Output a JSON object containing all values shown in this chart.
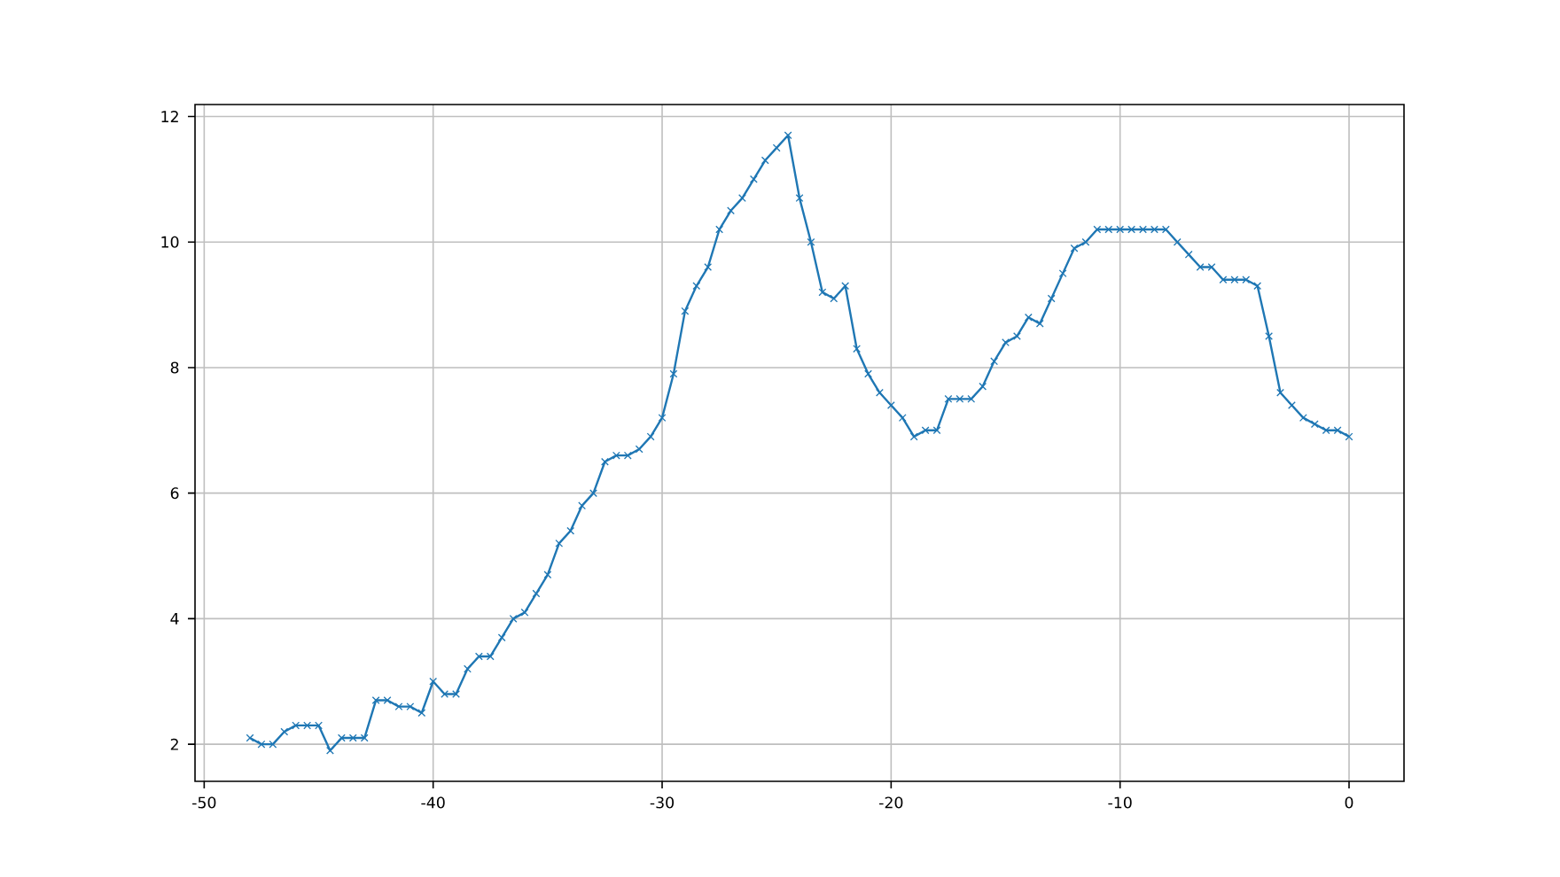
{
  "chart_data": {
    "type": "line",
    "marker": "cross",
    "grid": true,
    "xlim": [
      -50.4,
      2.4
    ],
    "ylim": [
      1.41,
      12.19
    ],
    "xticks": [
      -50,
      -40,
      -30,
      -20,
      -10,
      0
    ],
    "yticks": [
      2,
      4,
      6,
      8,
      10,
      12
    ],
    "x": [
      -48,
      -47.5,
      -47,
      -46.5,
      -46,
      -45.5,
      -45,
      -44.5,
      -44,
      -43.5,
      -43,
      -42.5,
      -42,
      -41.5,
      -41,
      -40.5,
      -40,
      -39.5,
      -39,
      -38.5,
      -38,
      -37.5,
      -37,
      -36.5,
      -36,
      -35.5,
      -35,
      -34.5,
      -34,
      -33.5,
      -33,
      -32.5,
      -32,
      -31.5,
      -31,
      -30.5,
      -30,
      -29.5,
      -29,
      -28.5,
      -28,
      -27.5,
      -27,
      -26.5,
      -26,
      -25.5,
      -25,
      -24.5,
      -24,
      -23.5,
      -23,
      -22.5,
      -22,
      -21.5,
      -21,
      -20.5,
      -20,
      -19.5,
      -19,
      -18.5,
      -18,
      -17.5,
      -17,
      -16.5,
      -16,
      -15.5,
      -15,
      -14.5,
      -14,
      -13.5,
      -13,
      -12.5,
      -12,
      -11.5,
      -11,
      -10.5,
      -10,
      -9.5,
      -9,
      -8.5,
      -8,
      -7.5,
      -7,
      -6.5,
      -6,
      -5.5,
      -5,
      -4.5,
      -4,
      -3.5,
      -3,
      -2.5,
      -2,
      -1.5,
      -1,
      -0.5,
      0
    ],
    "series": [
      {
        "color": "#1f77b4",
        "values": [
          2.1,
          2.0,
          2.0,
          2.2,
          2.3,
          2.3,
          2.3,
          1.9,
          2.1,
          2.1,
          2.1,
          2.7,
          2.7,
          2.6,
          2.6,
          2.5,
          3.0,
          2.8,
          2.8,
          3.2,
          3.4,
          3.4,
          3.7,
          4.0,
          4.1,
          4.4,
          4.7,
          5.2,
          5.4,
          5.8,
          6.0,
          6.5,
          6.6,
          6.6,
          6.7,
          6.9,
          7.2,
          7.9,
          8.9,
          9.3,
          9.6,
          10.2,
          10.5,
          10.7,
          11.0,
          11.3,
          11.5,
          11.7,
          10.7,
          10.0,
          9.2,
          9.1,
          9.3,
          8.3,
          7.9,
          7.6,
          7.4,
          7.2,
          6.9,
          7.0,
          7.0,
          7.5,
          7.5,
          7.5,
          7.7,
          8.1,
          8.4,
          8.5,
          8.8,
          8.7,
          9.1,
          9.5,
          9.9,
          10.0,
          10.2,
          10.2,
          10.2,
          10.2,
          10.2,
          10.2,
          10.2,
          10.0,
          9.8,
          9.6,
          9.6,
          9.4,
          9.4,
          9.4,
          9.3,
          8.5,
          7.6,
          7.4,
          7.2,
          7.1,
          7.0,
          7.0,
          6.9
        ]
      }
    ]
  }
}
